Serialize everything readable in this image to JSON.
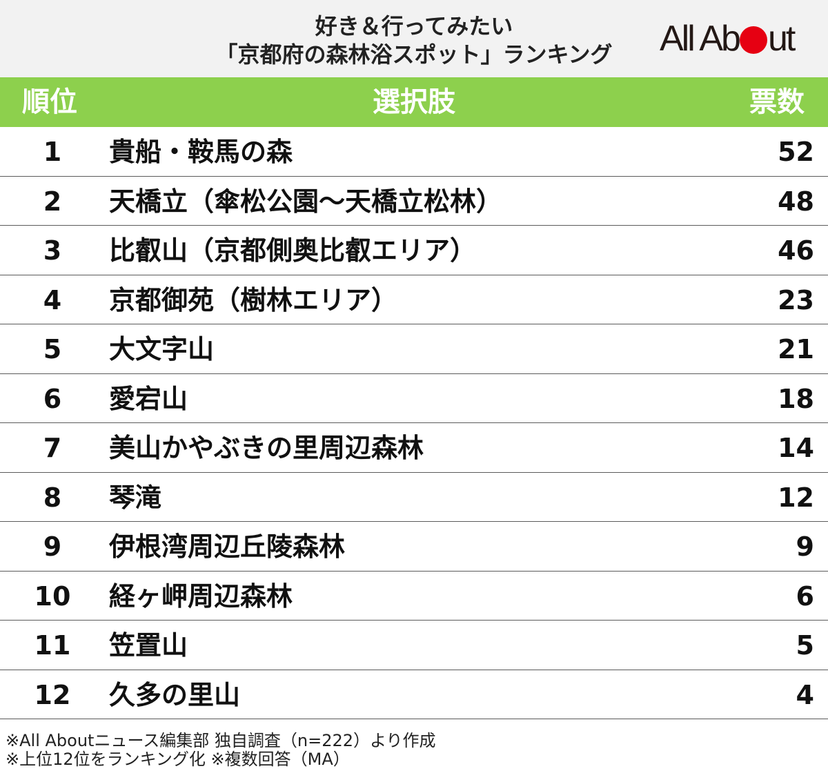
{
  "header": {
    "title_line1": "好き＆行ってみたい",
    "title_line2": "「京都府の森林浴スポット」ランキング",
    "logo": {
      "before": "All Ab",
      "after": "ut",
      "dot_color": "#e60012"
    }
  },
  "table": {
    "columns": {
      "rank": "順位",
      "choice": "選択肢",
      "votes": "票数"
    },
    "header_color": "#8dd04d",
    "rows": [
      {
        "rank": "1",
        "name": "貴船・鞍馬の森",
        "votes": "52"
      },
      {
        "rank": "2",
        "name": "天橋立（傘松公園〜天橋立松林）",
        "votes": "48"
      },
      {
        "rank": "3",
        "name": "比叡山（京都側奥比叡エリア）",
        "votes": "46"
      },
      {
        "rank": "4",
        "name": "京都御苑（樹林エリア）",
        "votes": "23"
      },
      {
        "rank": "5",
        "name": "大文字山",
        "votes": "21"
      },
      {
        "rank": "6",
        "name": "愛宕山",
        "votes": "18"
      },
      {
        "rank": "7",
        "name": "美山かやぶきの里周辺森林",
        "votes": "14"
      },
      {
        "rank": "8",
        "name": "琴滝",
        "votes": "12"
      },
      {
        "rank": "9",
        "name": "伊根湾周辺丘陵森林",
        "votes": "9"
      },
      {
        "rank": "10",
        "name": "経ヶ岬周辺森林",
        "votes": "6"
      },
      {
        "rank": "11",
        "name": "笠置山",
        "votes": "5"
      },
      {
        "rank": "12",
        "name": "久多の里山",
        "votes": "4"
      }
    ]
  },
  "footer": {
    "note1": "※All Aboutニュース編集部 独自調査（n=222）より作成",
    "note2": "※上位12位をランキング化 ※複数回答（MA）"
  }
}
